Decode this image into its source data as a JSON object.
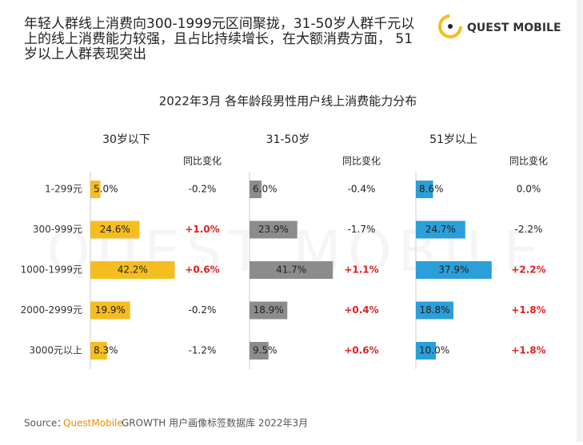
{
  "header": {
    "title_lines": [
      "年轻人群线上消费向300-1999元区间聚拢，31-50岁人群千元以",
      "上的线上消费能力较强，且占比持续增长，在大额消费方面， 51",
      "岁以上人群表现突出"
    ],
    "logo": "QUEST MOBILE"
  },
  "watermark": "QUEST MOBILE",
  "chart_data": {
    "type": "bar",
    "title": "2022年3月 各年龄段男性用户线上消费能力分布",
    "categories": [
      "1-299元",
      "300-999元",
      "1000-1999元",
      "2000-2999元",
      "3000元以上"
    ],
    "change_header": "同比变化",
    "series": [
      {
        "name": "30岁以下",
        "color": "#f5bd1f",
        "values": [
          5.0,
          24.6,
          42.2,
          19.9,
          8.3
        ],
        "value_labels": [
          "5.0%",
          "24.6%",
          "42.2%",
          "19.9%",
          "8.3%"
        ],
        "change_labels": [
          "-0.2%",
          "+1.0%",
          "+0.6%",
          "-0.2%",
          "-1.2%"
        ]
      },
      {
        "name": "31-50岁",
        "color": "#8c8c8c",
        "values": [
          6.0,
          23.9,
          41.7,
          18.9,
          9.5
        ],
        "value_labels": [
          "6.0%",
          "23.9%",
          "41.7%",
          "18.9%",
          "9.5%"
        ],
        "change_labels": [
          "-0.4%",
          "-1.7%",
          "+1.1%",
          "+0.4%",
          "+0.6%"
        ]
      },
      {
        "name": "51岁以上",
        "color": "#2b9fd9",
        "values": [
          8.6,
          24.7,
          37.9,
          18.8,
          10.0
        ],
        "value_labels": [
          "8.6%",
          "24.7%",
          "37.9%",
          "18.8%",
          "10.0%"
        ],
        "change_labels": [
          "0.0%",
          "-2.2%",
          "+2.2%",
          "+1.8%",
          "+1.8%"
        ]
      }
    ]
  },
  "source": {
    "prefix": "Source：",
    "brand": "QuestMobile",
    "rest": "GROWTH 用户画像标签数据库 2022年3月"
  }
}
